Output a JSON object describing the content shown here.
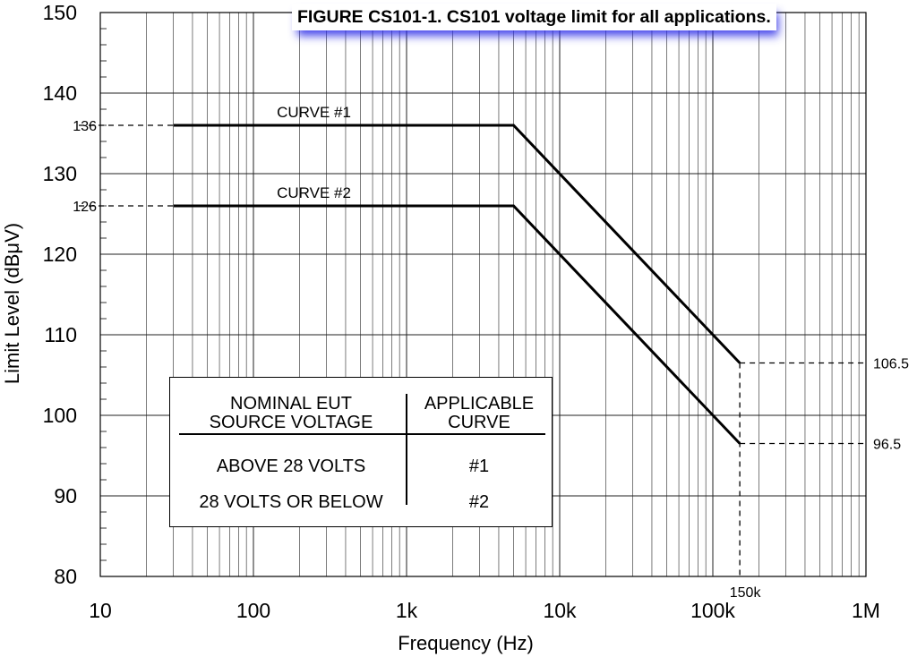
{
  "chart_data": {
    "type": "line",
    "title": "FIGURE CS101-1.  CS101 voltage limit for all applications.",
    "xlabel": "Frequency (Hz)",
    "ylabel": "Limit Level (dBμV)",
    "x_scale": "log",
    "xlim": [
      10,
      1000000
    ],
    "ylim": [
      80,
      150
    ],
    "x_ticks": [
      {
        "value": 10,
        "label": "10"
      },
      {
        "value": 100,
        "label": "100"
      },
      {
        "value": 1000,
        "label": "1k"
      },
      {
        "value": 10000,
        "label": "10k"
      },
      {
        "value": 100000,
        "label": "100k"
      },
      {
        "value": 1000000,
        "label": "1M"
      }
    ],
    "y_ticks": [
      80,
      90,
      100,
      110,
      120,
      130,
      140,
      150
    ],
    "grid": true,
    "series": [
      {
        "label": "CURVE #1",
        "x": [
          30,
          5000,
          150000
        ],
        "y": [
          136,
          136,
          106.5
        ]
      },
      {
        "label": "CURVE #2",
        "x": [
          30,
          5000,
          150000
        ],
        "y": [
          126,
          126,
          96.5
        ]
      }
    ],
    "annotations": {
      "left_levels": [
        {
          "value": 136,
          "label": "136"
        },
        {
          "value": 126,
          "label": "126"
        }
      ],
      "right_levels": [
        {
          "value": 106.5,
          "label": "106.5"
        },
        {
          "value": 96.5,
          "label": "96.5"
        }
      ],
      "freq_marker": {
        "value": 150000,
        "label": "150k"
      }
    },
    "table": {
      "headers": [
        [
          "NOMINAL EUT",
          "SOURCE VOLTAGE"
        ],
        [
          "APPLICABLE",
          "CURVE"
        ]
      ],
      "rows": [
        [
          "ABOVE 28 VOLTS",
          "#1"
        ],
        [
          "28 VOLTS OR BELOW",
          "#2"
        ]
      ]
    }
  }
}
